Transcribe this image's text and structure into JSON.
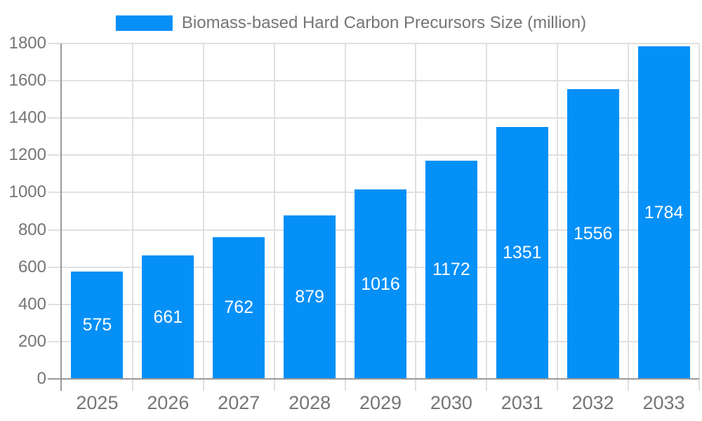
{
  "chart_data": {
    "type": "bar",
    "title": "Biomass-based Hard Carbon Precursors Size (million)",
    "categories": [
      "2025",
      "2026",
      "2027",
      "2028",
      "2029",
      "2030",
      "2031",
      "2032",
      "2033"
    ],
    "values": [
      575,
      661,
      762,
      879,
      1016,
      1172,
      1351,
      1556,
      1784
    ],
    "xlabel": "",
    "ylabel": "",
    "ylim": [
      0,
      1800
    ],
    "yticks": [
      0,
      200,
      400,
      600,
      800,
      1000,
      1200,
      1400,
      1600,
      1800
    ],
    "grid": true,
    "legend_position": "top-center",
    "value_labels": "inside-center",
    "colors": {
      "bar": "#0590f8",
      "value_label": "#ffffff",
      "axis": "#999999",
      "grid": "#e0e0e0",
      "text": "#757575",
      "background": "#ffffff"
    }
  }
}
